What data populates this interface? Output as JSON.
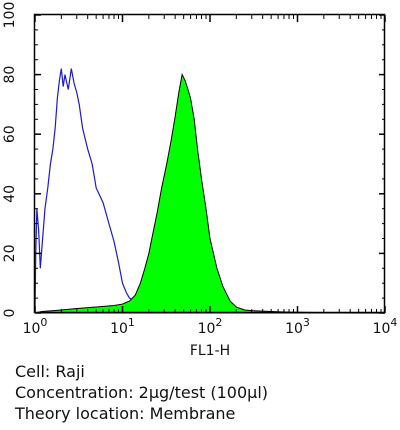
{
  "chart_data": {
    "type": "area",
    "x_scale": "log",
    "xlim": [
      1,
      10000
    ],
    "ylim": [
      0,
      100
    ],
    "xlabel": "FL1-H",
    "ylabel": "",
    "grid": false,
    "x_ticks": [
      {
        "value": 1,
        "base": "10",
        "exp": "0"
      },
      {
        "value": 10,
        "base": "10",
        "exp": "1"
      },
      {
        "value": 100,
        "base": "10",
        "exp": "2"
      },
      {
        "value": 1000,
        "base": "10",
        "exp": "3"
      },
      {
        "value": 10000,
        "base": "10",
        "exp": "4"
      }
    ],
    "y_ticks": [
      0,
      20,
      40,
      60,
      80,
      100
    ],
    "series": [
      {
        "style": "outline",
        "color": "#1a1ad4",
        "points": [
          [
            1.0,
            0
          ],
          [
            1.02,
            20
          ],
          [
            1.05,
            35
          ],
          [
            1.1,
            28
          ],
          [
            1.15,
            15
          ],
          [
            1.2,
            22
          ],
          [
            1.3,
            35
          ],
          [
            1.4,
            42
          ],
          [
            1.5,
            50
          ],
          [
            1.6,
            55
          ],
          [
            1.7,
            62
          ],
          [
            1.8,
            72
          ],
          [
            1.9,
            78
          ],
          [
            2.0,
            82
          ],
          [
            2.1,
            76
          ],
          [
            2.2,
            80
          ],
          [
            2.4,
            75
          ],
          [
            2.6,
            82
          ],
          [
            2.8,
            77
          ],
          [
            3.0,
            74
          ],
          [
            3.2,
            70
          ],
          [
            3.5,
            62
          ],
          [
            4.0,
            55
          ],
          [
            4.5,
            50
          ],
          [
            5.0,
            42
          ],
          [
            6.0,
            37
          ],
          [
            7.0,
            30
          ],
          [
            8.0,
            24
          ],
          [
            9.0,
            17
          ],
          [
            10.0,
            10
          ],
          [
            11.0,
            7
          ],
          [
            12.0,
            5
          ],
          [
            14.0,
            4
          ],
          [
            16.0,
            3
          ],
          [
            20.0,
            2
          ],
          [
            25.0,
            1.5
          ],
          [
            30.0,
            1
          ],
          [
            40.0,
            0.5
          ],
          [
            60.0,
            0.2
          ],
          [
            10000,
            0
          ]
        ]
      },
      {
        "style": "filled",
        "color": "#00ff00",
        "points": [
          [
            1.0,
            0
          ],
          [
            1.2,
            0.5
          ],
          [
            2.0,
            1
          ],
          [
            3.0,
            1.5
          ],
          [
            5.0,
            2
          ],
          [
            8.0,
            2.5
          ],
          [
            10.0,
            3
          ],
          [
            12.0,
            4
          ],
          [
            14.0,
            6
          ],
          [
            16.0,
            10
          ],
          [
            18.0,
            15
          ],
          [
            20.0,
            20
          ],
          [
            22.0,
            26
          ],
          [
            25.0,
            34
          ],
          [
            28.0,
            42
          ],
          [
            32.0,
            50
          ],
          [
            36.0,
            58
          ],
          [
            40.0,
            66
          ],
          [
            44.0,
            74
          ],
          [
            48.0,
            80
          ],
          [
            52.0,
            78
          ],
          [
            56.0,
            75
          ],
          [
            60.0,
            72
          ],
          [
            66.0,
            65
          ],
          [
            72.0,
            55
          ],
          [
            80.0,
            45
          ],
          [
            90.0,
            35
          ],
          [
            100.0,
            25
          ],
          [
            120.0,
            15
          ],
          [
            140.0,
            9
          ],
          [
            170.0,
            4
          ],
          [
            200.0,
            2
          ],
          [
            250.0,
            1
          ],
          [
            300.0,
            0.8
          ],
          [
            500.0,
            0.5
          ],
          [
            800.0,
            0.3
          ],
          [
            1200.0,
            0.2
          ],
          [
            3000.0,
            0.1
          ],
          [
            10000,
            0
          ]
        ]
      }
    ]
  },
  "caption": {
    "line1": "Cell: Raji",
    "line2": "Concentration: 2μg/test (100μl)",
    "line3": "Theory location: Membrane"
  }
}
